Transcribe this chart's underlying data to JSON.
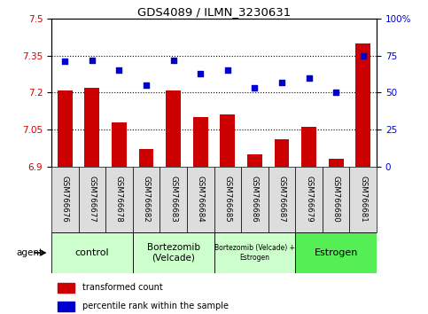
{
  "title": "GDS4089 / ILMN_3230631",
  "samples": [
    "GSM766676",
    "GSM766677",
    "GSM766678",
    "GSM766682",
    "GSM766683",
    "GSM766684",
    "GSM766685",
    "GSM766686",
    "GSM766687",
    "GSM766679",
    "GSM766680",
    "GSM766681"
  ],
  "bar_values": [
    7.21,
    7.22,
    7.08,
    6.97,
    7.21,
    7.1,
    7.11,
    6.95,
    7.01,
    7.06,
    6.93,
    7.4
  ],
  "scatter_values": [
    71,
    72,
    65,
    55,
    72,
    63,
    65,
    53,
    57,
    60,
    50,
    75
  ],
  "ylim_left": [
    6.9,
    7.5
  ],
  "ylim_right": [
    0,
    100
  ],
  "yticks_left": [
    6.9,
    7.05,
    7.2,
    7.35,
    7.5
  ],
  "yticks_right": [
    0,
    25,
    50,
    75,
    100
  ],
  "ytick_labels_left": [
    "6.9",
    "7.05",
    "7.2",
    "7.35",
    "7.5"
  ],
  "ytick_labels_right": [
    "0",
    "25",
    "50",
    "75",
    "100%"
  ],
  "hlines": [
    7.05,
    7.2,
    7.35
  ],
  "bar_color": "#cc0000",
  "scatter_color": "#0000cc",
  "groups": [
    {
      "label": "control",
      "start": 0,
      "end": 3,
      "color": "#ccffcc",
      "fontsize": 8
    },
    {
      "label": "Bortezomib\n(Velcade)",
      "start": 3,
      "end": 6,
      "color": "#ccffcc",
      "fontsize": 7.5
    },
    {
      "label": "Bortezomib (Velcade) +\nEstrogen",
      "start": 6,
      "end": 9,
      "color": "#ccffcc",
      "fontsize": 5.5
    },
    {
      "label": "Estrogen",
      "start": 9,
      "end": 12,
      "color": "#55ee55",
      "fontsize": 8
    }
  ],
  "agent_label": "agent",
  "legend_items": [
    {
      "color": "#cc0000",
      "label": "transformed count"
    },
    {
      "color": "#0000cc",
      "label": "percentile rank within the sample"
    }
  ],
  "bar_width": 0.55,
  "tick_label_color_left": "#cc0000",
  "tick_label_color_right": "#0000cc",
  "bg_color": "#ffffff",
  "plot_bg_color": "#ffffff",
  "spine_color": "#000000",
  "sample_cell_color": "#dddddd"
}
